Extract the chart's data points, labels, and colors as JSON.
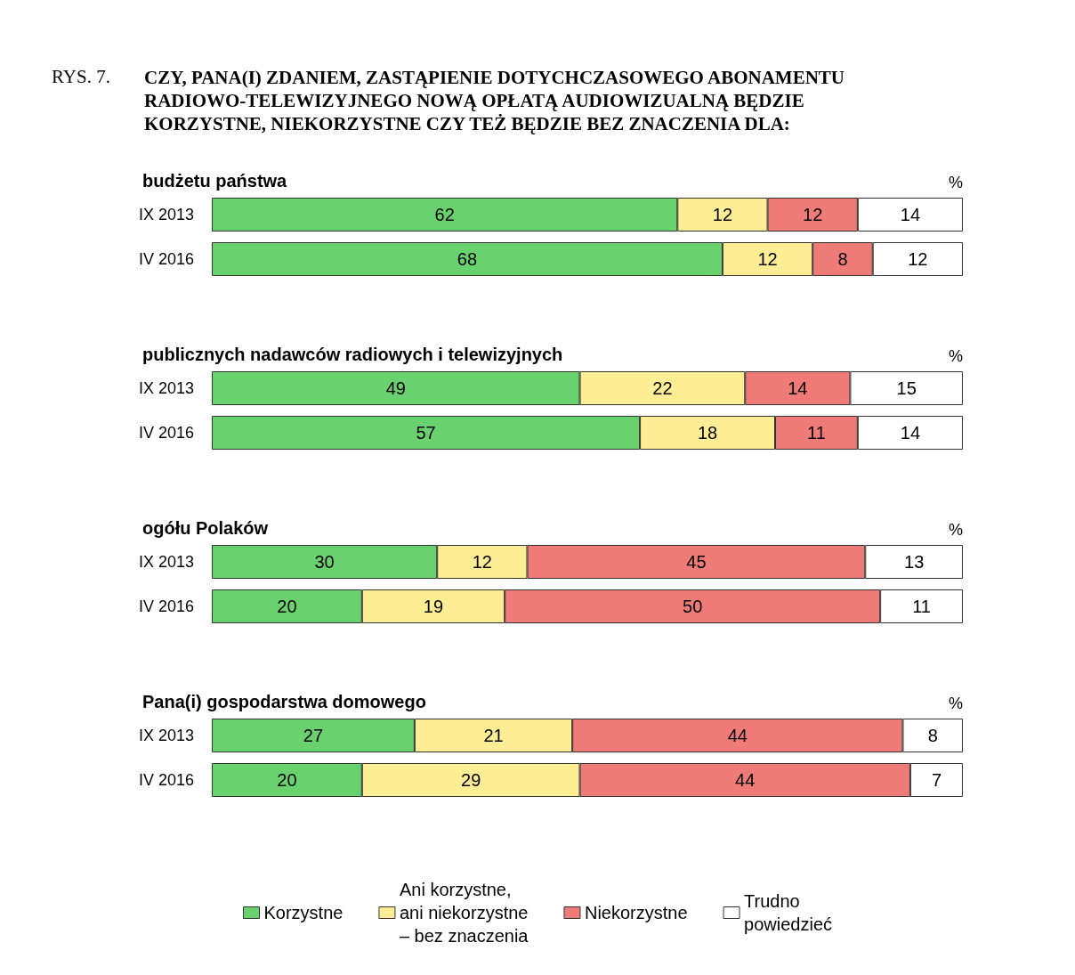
{
  "chart_data": [
    {
      "type": "bar",
      "orientation": "horizontal",
      "stacked": true,
      "data_labels": true,
      "title": "CZY, PANA(I) ZDANIEM, ZASTĄPIENIE DOTYCHCZASOWEGO ABONAMENTU\nRADIOWO-TELEWIZYJNEGO NOWĄ OPŁATĄ AUDIOWIZUALNĄ BĘDZIE\nKORZYSTNE, NIEKORZYSTNE CZY TEŻ BĘDZIE BEZ ZNACZENIA DLA:",
      "subtitle": "budżetu państwa",
      "annotations": [
        "%",
        "RYS. 7."
      ],
      "categories": [
        "IX 2013",
        "IV 2016"
      ],
      "series": [
        {
          "color": "#6ad16f",
          "values": [
            62,
            68
          ]
        },
        {
          "color": "#fdee96",
          "values": [
            12,
            12
          ]
        },
        {
          "color": "#ef7b78",
          "values": [
            12,
            8
          ]
        },
        {
          "color": "#ffffff",
          "values": [
            14,
            12
          ]
        }
      ]
    },
    {
      "type": "bar",
      "orientation": "horizontal",
      "stacked": true,
      "data_labels": true,
      "subtitle": "publicznych nadawców radiowych i telewizyjnych",
      "annotations": [
        "%"
      ],
      "categories": [
        "IX 2013",
        "IV 2016"
      ],
      "series": [
        {
          "color": "#6ad16f",
          "values": [
            49,
            57
          ]
        },
        {
          "color": "#fdee96",
          "values": [
            22,
            18
          ]
        },
        {
          "color": "#ef7b78",
          "values": [
            14,
            11
          ]
        },
        {
          "color": "#ffffff",
          "values": [
            15,
            14
          ]
        }
      ]
    },
    {
      "type": "bar",
      "orientation": "horizontal",
      "stacked": true,
      "data_labels": true,
      "subtitle": "ogółu Polaków",
      "annotations": [
        "%"
      ],
      "categories": [
        "IX 2013",
        "IV 2016"
      ],
      "series": [
        {
          "color": "#6ad16f",
          "values": [
            30,
            20
          ]
        },
        {
          "color": "#fdee96",
          "values": [
            12,
            19
          ]
        },
        {
          "color": "#ef7b78",
          "values": [
            45,
            50
          ]
        },
        {
          "color": "#ffffff",
          "values": [
            13,
            11
          ]
        }
      ]
    },
    {
      "type": "bar",
      "orientation": "horizontal",
      "stacked": true,
      "data_labels": true,
      "legend": "bottom",
      "subtitle": "Pana(i) gospodarstwa domowego",
      "annotations": [
        "%"
      ],
      "categories": [
        "IX 2013",
        "IV 2016"
      ],
      "series": [
        {
          "name": "Korzystne",
          "color": "#6ad16f",
          "values": [
            27,
            20
          ]
        },
        {
          "name": "Ani korzystne,\nani niekorzystne\n– bez znaczenia",
          "color": "#fdee96",
          "values": [
            21,
            29
          ]
        },
        {
          "name": "Niekorzystne",
          "color": "#ef7b78",
          "values": [
            44,
            44
          ]
        },
        {
          "name": "Trudno\npowiedzieć",
          "color": "#ffffff",
          "values": [
            8,
            7
          ]
        }
      ]
    }
  ]
}
